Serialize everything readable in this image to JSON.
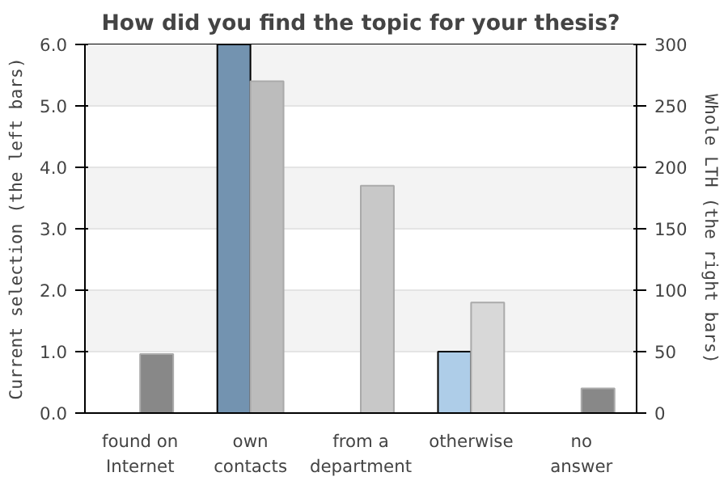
{
  "chart_data": {
    "type": "bar",
    "title": "How did you find the topic for your thesis?",
    "categories": [
      "found on\nInternet",
      "own\ncontacts",
      "from a\ndepartment",
      "otherwise",
      "no\nanswer"
    ],
    "series": [
      {
        "colors": [
          "#7393b0",
          "#7393b0",
          "#7393b0",
          "#aecde8",
          "#7393b0"
        ],
        "values": [
          0,
          6.0,
          0,
          1.0,
          0
        ]
      },
      {
        "colors": [
          "#888888",
          "#bcbcbc",
          "#c8c8c8",
          "#d8d8d8",
          "#888888"
        ],
        "values": [
          48,
          270,
          185,
          90,
          20
        ],
        "axis": "y2"
      }
    ],
    "ylabel": "Current selection (the left bars)",
    "y2label": "Whole LTH (the right bars)",
    "ylim": [
      0,
      6
    ],
    "yticks": [
      {
        "value": 0,
        "label": "0.0"
      },
      {
        "value": 1,
        "label": "1.0"
      },
      {
        "value": 2,
        "label": "2.0"
      },
      {
        "value": 3,
        "label": "3.0"
      },
      {
        "value": 4,
        "label": "4.0"
      },
      {
        "value": 5,
        "label": "5.0"
      },
      {
        "value": 6,
        "label": "6.0"
      }
    ],
    "y2lim": [
      0,
      300
    ],
    "y2ticks": [
      0,
      50,
      100,
      150,
      200,
      250,
      300
    ],
    "grid": "y"
  }
}
